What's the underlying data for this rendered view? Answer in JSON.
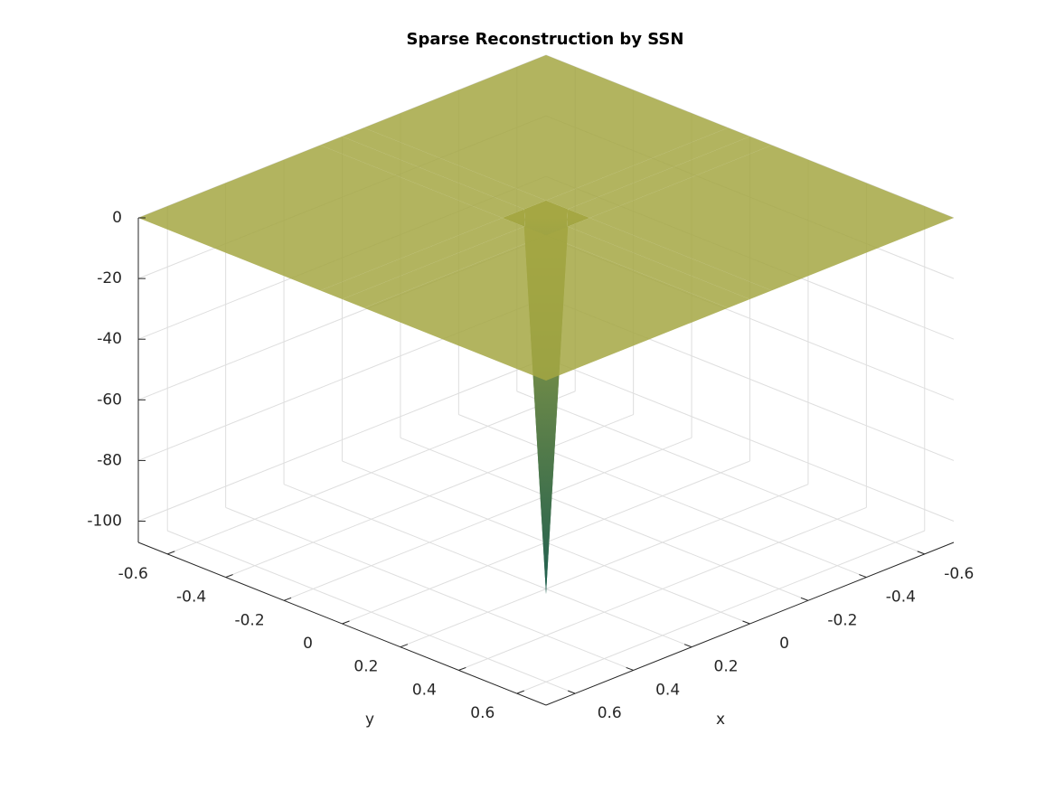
{
  "chart_data": {
    "type": "surface",
    "title": "Sparse Reconstruction by SSN",
    "xlabel": "x",
    "ylabel": "y",
    "x": [
      -0.7,
      -0.075,
      0,
      0.075,
      0.7
    ],
    "y": [
      -0.7,
      -0.075,
      0,
      0.075,
      0.7
    ],
    "z": [
      [
        0,
        0,
        0,
        0,
        0
      ],
      [
        0,
        0,
        0,
        0,
        0
      ],
      [
        0,
        0,
        -124,
        0,
        0
      ],
      [
        0,
        0,
        0,
        0,
        0
      ],
      [
        0,
        0,
        0,
        0,
        0
      ]
    ],
    "xlim": [
      -0.7,
      0.7
    ],
    "ylim": [
      -0.7,
      0.7
    ],
    "zlim": [
      -107,
      0
    ],
    "xticks": [
      -0.6,
      -0.4,
      -0.2,
      0,
      0.2,
      0.4,
      0.6
    ],
    "yticks": [
      -0.6,
      -0.4,
      -0.2,
      0,
      0.2,
      0.4,
      0.6
    ],
    "zticks": [
      -100,
      -80,
      -60,
      -40,
      -20,
      0
    ],
    "grid": true,
    "colormap": [
      "#1f5f4f",
      "#a5a743"
    ]
  }
}
